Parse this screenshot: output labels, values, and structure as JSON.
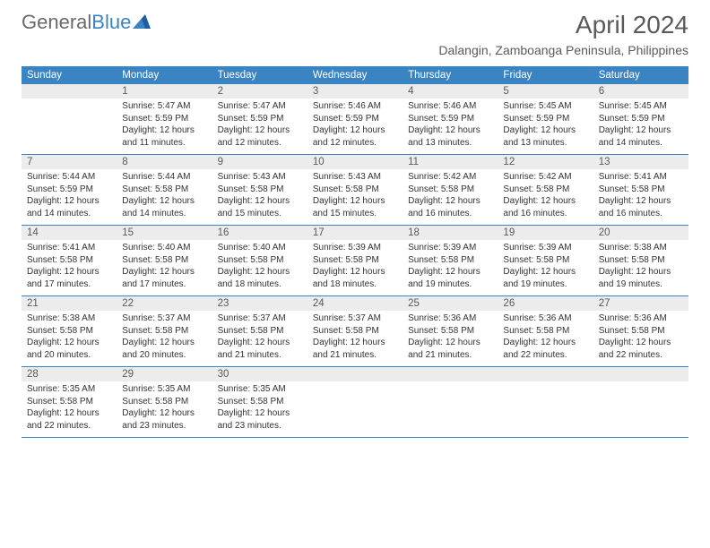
{
  "logo": {
    "text_a": "General",
    "text_b": "Blue"
  },
  "title": "April 2024",
  "location": "Dalangin, Zamboanga Peninsula, Philippines",
  "colors": {
    "header_bar": "#3b84c4",
    "daynum_bg": "#ececec",
    "text_gray": "#5a5a5a",
    "body_text": "#333333",
    "white": "#ffffff"
  },
  "dow": [
    "Sunday",
    "Monday",
    "Tuesday",
    "Wednesday",
    "Thursday",
    "Friday",
    "Saturday"
  ],
  "weeks": [
    [
      {
        "num": "",
        "sunrise": "",
        "sunset": "",
        "daylight": ""
      },
      {
        "num": "1",
        "sunrise": "Sunrise: 5:47 AM",
        "sunset": "Sunset: 5:59 PM",
        "daylight": "Daylight: 12 hours and 11 minutes."
      },
      {
        "num": "2",
        "sunrise": "Sunrise: 5:47 AM",
        "sunset": "Sunset: 5:59 PM",
        "daylight": "Daylight: 12 hours and 12 minutes."
      },
      {
        "num": "3",
        "sunrise": "Sunrise: 5:46 AM",
        "sunset": "Sunset: 5:59 PM",
        "daylight": "Daylight: 12 hours and 12 minutes."
      },
      {
        "num": "4",
        "sunrise": "Sunrise: 5:46 AM",
        "sunset": "Sunset: 5:59 PM",
        "daylight": "Daylight: 12 hours and 13 minutes."
      },
      {
        "num": "5",
        "sunrise": "Sunrise: 5:45 AM",
        "sunset": "Sunset: 5:59 PM",
        "daylight": "Daylight: 12 hours and 13 minutes."
      },
      {
        "num": "6",
        "sunrise": "Sunrise: 5:45 AM",
        "sunset": "Sunset: 5:59 PM",
        "daylight": "Daylight: 12 hours and 14 minutes."
      }
    ],
    [
      {
        "num": "7",
        "sunrise": "Sunrise: 5:44 AM",
        "sunset": "Sunset: 5:59 PM",
        "daylight": "Daylight: 12 hours and 14 minutes."
      },
      {
        "num": "8",
        "sunrise": "Sunrise: 5:44 AM",
        "sunset": "Sunset: 5:58 PM",
        "daylight": "Daylight: 12 hours and 14 minutes."
      },
      {
        "num": "9",
        "sunrise": "Sunrise: 5:43 AM",
        "sunset": "Sunset: 5:58 PM",
        "daylight": "Daylight: 12 hours and 15 minutes."
      },
      {
        "num": "10",
        "sunrise": "Sunrise: 5:43 AM",
        "sunset": "Sunset: 5:58 PM",
        "daylight": "Daylight: 12 hours and 15 minutes."
      },
      {
        "num": "11",
        "sunrise": "Sunrise: 5:42 AM",
        "sunset": "Sunset: 5:58 PM",
        "daylight": "Daylight: 12 hours and 16 minutes."
      },
      {
        "num": "12",
        "sunrise": "Sunrise: 5:42 AM",
        "sunset": "Sunset: 5:58 PM",
        "daylight": "Daylight: 12 hours and 16 minutes."
      },
      {
        "num": "13",
        "sunrise": "Sunrise: 5:41 AM",
        "sunset": "Sunset: 5:58 PM",
        "daylight": "Daylight: 12 hours and 16 minutes."
      }
    ],
    [
      {
        "num": "14",
        "sunrise": "Sunrise: 5:41 AM",
        "sunset": "Sunset: 5:58 PM",
        "daylight": "Daylight: 12 hours and 17 minutes."
      },
      {
        "num": "15",
        "sunrise": "Sunrise: 5:40 AM",
        "sunset": "Sunset: 5:58 PM",
        "daylight": "Daylight: 12 hours and 17 minutes."
      },
      {
        "num": "16",
        "sunrise": "Sunrise: 5:40 AM",
        "sunset": "Sunset: 5:58 PM",
        "daylight": "Daylight: 12 hours and 18 minutes."
      },
      {
        "num": "17",
        "sunrise": "Sunrise: 5:39 AM",
        "sunset": "Sunset: 5:58 PM",
        "daylight": "Daylight: 12 hours and 18 minutes."
      },
      {
        "num": "18",
        "sunrise": "Sunrise: 5:39 AM",
        "sunset": "Sunset: 5:58 PM",
        "daylight": "Daylight: 12 hours and 19 minutes."
      },
      {
        "num": "19",
        "sunrise": "Sunrise: 5:39 AM",
        "sunset": "Sunset: 5:58 PM",
        "daylight": "Daylight: 12 hours and 19 minutes."
      },
      {
        "num": "20",
        "sunrise": "Sunrise: 5:38 AM",
        "sunset": "Sunset: 5:58 PM",
        "daylight": "Daylight: 12 hours and 19 minutes."
      }
    ],
    [
      {
        "num": "21",
        "sunrise": "Sunrise: 5:38 AM",
        "sunset": "Sunset: 5:58 PM",
        "daylight": "Daylight: 12 hours and 20 minutes."
      },
      {
        "num": "22",
        "sunrise": "Sunrise: 5:37 AM",
        "sunset": "Sunset: 5:58 PM",
        "daylight": "Daylight: 12 hours and 20 minutes."
      },
      {
        "num": "23",
        "sunrise": "Sunrise: 5:37 AM",
        "sunset": "Sunset: 5:58 PM",
        "daylight": "Daylight: 12 hours and 21 minutes."
      },
      {
        "num": "24",
        "sunrise": "Sunrise: 5:37 AM",
        "sunset": "Sunset: 5:58 PM",
        "daylight": "Daylight: 12 hours and 21 minutes."
      },
      {
        "num": "25",
        "sunrise": "Sunrise: 5:36 AM",
        "sunset": "Sunset: 5:58 PM",
        "daylight": "Daylight: 12 hours and 21 minutes."
      },
      {
        "num": "26",
        "sunrise": "Sunrise: 5:36 AM",
        "sunset": "Sunset: 5:58 PM",
        "daylight": "Daylight: 12 hours and 22 minutes."
      },
      {
        "num": "27",
        "sunrise": "Sunrise: 5:36 AM",
        "sunset": "Sunset: 5:58 PM",
        "daylight": "Daylight: 12 hours and 22 minutes."
      }
    ],
    [
      {
        "num": "28",
        "sunrise": "Sunrise: 5:35 AM",
        "sunset": "Sunset: 5:58 PM",
        "daylight": "Daylight: 12 hours and 22 minutes."
      },
      {
        "num": "29",
        "sunrise": "Sunrise: 5:35 AM",
        "sunset": "Sunset: 5:58 PM",
        "daylight": "Daylight: 12 hours and 23 minutes."
      },
      {
        "num": "30",
        "sunrise": "Sunrise: 5:35 AM",
        "sunset": "Sunset: 5:58 PM",
        "daylight": "Daylight: 12 hours and 23 minutes."
      },
      {
        "num": "",
        "sunrise": "",
        "sunset": "",
        "daylight": ""
      },
      {
        "num": "",
        "sunrise": "",
        "sunset": "",
        "daylight": ""
      },
      {
        "num": "",
        "sunrise": "",
        "sunset": "",
        "daylight": ""
      },
      {
        "num": "",
        "sunrise": "",
        "sunset": "",
        "daylight": ""
      }
    ]
  ]
}
